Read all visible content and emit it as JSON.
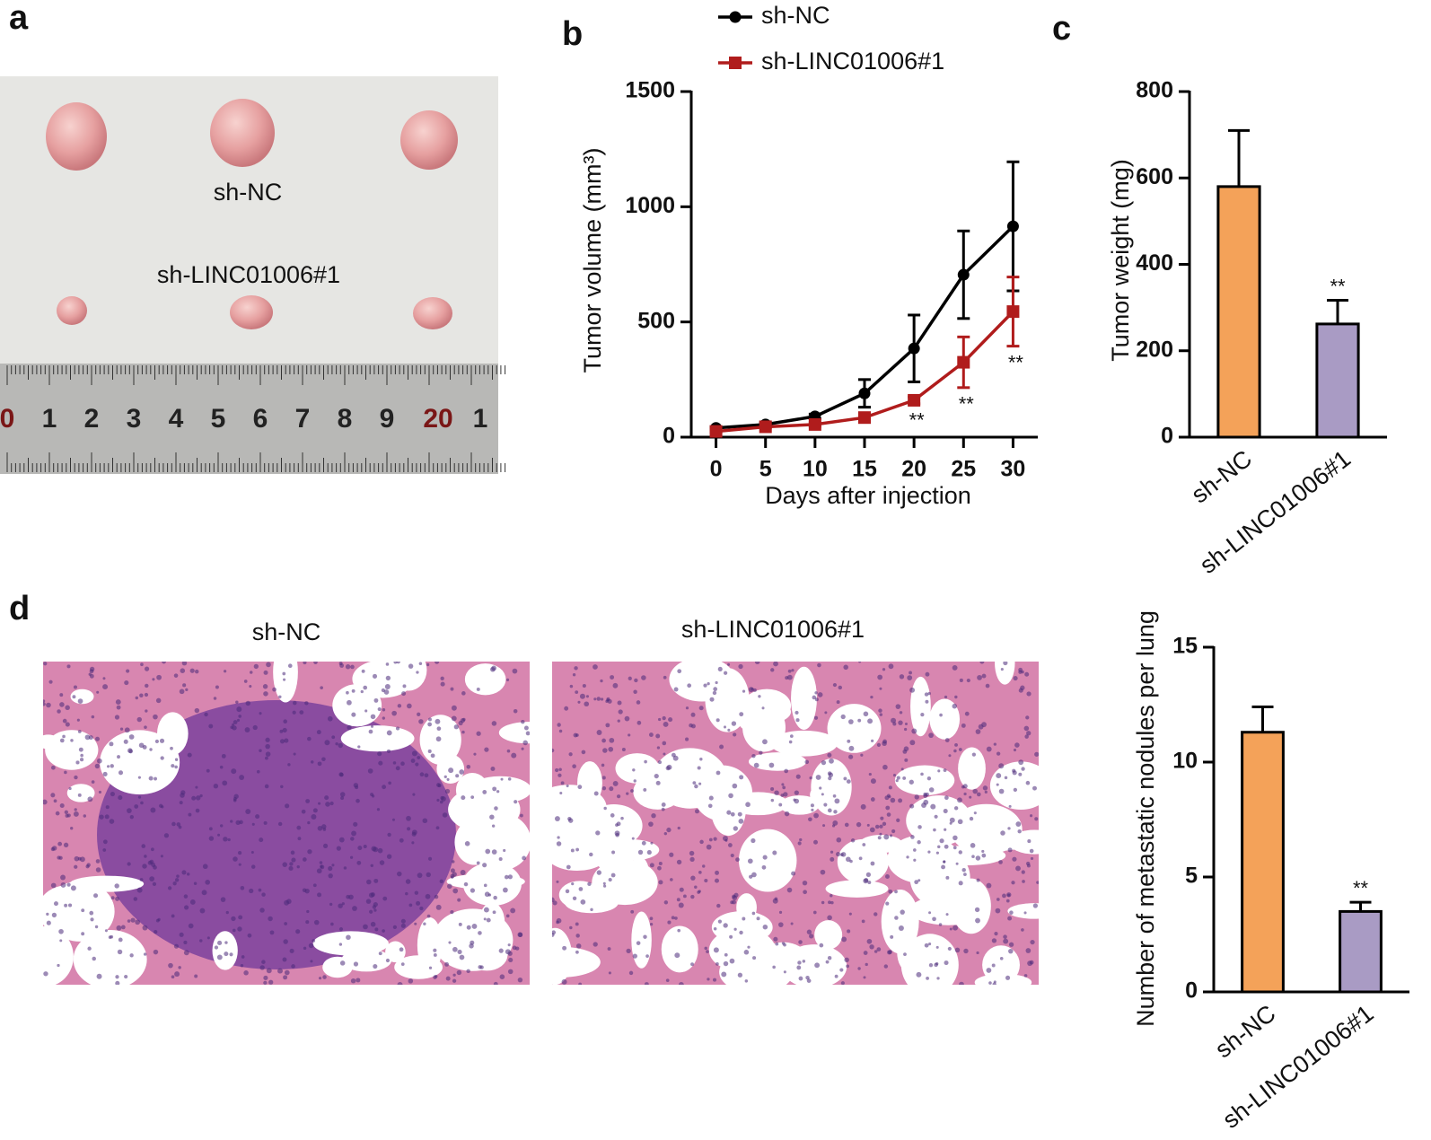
{
  "figure": {
    "panels": [
      "a",
      "b",
      "c",
      "d"
    ],
    "photo_a": {
      "labels": [
        "sh-NC",
        "sh-LINC01006#1"
      ],
      "ruler": [
        "0",
        "1",
        "2",
        "3",
        "4",
        "5",
        "6",
        "7",
        "8",
        "9",
        "20",
        "1"
      ]
    },
    "photo_d": {
      "labels": [
        "sh-NC",
        "sh-LINC01006#1"
      ]
    }
  },
  "chart_data": [
    {
      "type": "line",
      "xlabel": "Days after injection",
      "ylabel": "Tumor volume (mm³)",
      "x": [
        0,
        5,
        10,
        15,
        20,
        25,
        30
      ],
      "xlim": [
        -2.5,
        32.5
      ],
      "xticks": [
        0,
        5,
        10,
        15,
        20,
        25,
        30
      ],
      "ylim": [
        0,
        1500
      ],
      "yticks": [
        0,
        500,
        1000,
        1500
      ],
      "series": [
        {
          "name": "sh-NC",
          "color": "#000000",
          "marker": "circle",
          "values": [
            40,
            55,
            90,
            190,
            385,
            705,
            915
          ],
          "errors": [
            5,
            8,
            10,
            60,
            145,
            190,
            280
          ],
          "significance": [
            null,
            null,
            null,
            null,
            null,
            null,
            null
          ]
        },
        {
          "name": "sh-LINC01006#1",
          "color": "#b01c1c",
          "marker": "square",
          "values": [
            25,
            45,
            55,
            85,
            160,
            325,
            545
          ],
          "errors": [
            5,
            5,
            8,
            12,
            15,
            110,
            150
          ],
          "significance": [
            null,
            null,
            null,
            null,
            "**",
            "**",
            "**"
          ]
        }
      ]
    },
    {
      "type": "bar",
      "ylabel": "Tumor weight (mg)",
      "categories": [
        "sh-NC",
        "sh-LINC01006#1"
      ],
      "values": [
        580,
        262
      ],
      "errors": [
        130,
        55
      ],
      "significance": [
        null,
        "**"
      ],
      "colors": [
        "#f4a259",
        "#a99bc4"
      ],
      "ylim": [
        0,
        800
      ],
      "yticks": [
        0,
        200,
        400,
        600,
        800
      ]
    },
    {
      "type": "bar",
      "ylabel": "Number of  metastatic nodules per lung",
      "categories": [
        "sh-NC",
        "sh-LINC01006#1"
      ],
      "values": [
        11.3,
        3.5
      ],
      "errors": [
        1.1,
        0.4
      ],
      "significance": [
        null,
        "**"
      ],
      "colors": [
        "#f4a259",
        "#a99bc4"
      ],
      "ylim": [
        0,
        15
      ],
      "yticks": [
        0,
        5,
        10,
        15
      ]
    }
  ]
}
